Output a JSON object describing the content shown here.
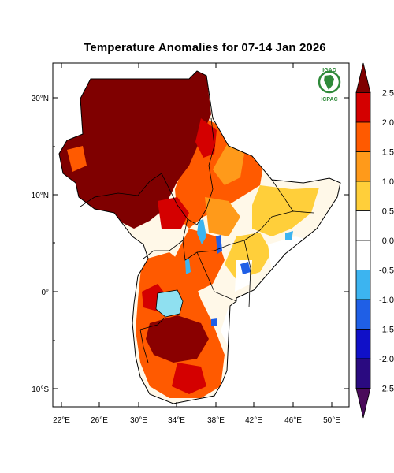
{
  "title": "Temperature Anomalies for 07-14 Jan 2026",
  "logo": {
    "top_text": "IGAD",
    "bottom_text": "ICPAC"
  },
  "axes": {
    "lat_ticks": [
      "20°N",
      "10°N",
      "0°",
      "10°S"
    ],
    "lon_ticks": [
      "22°E",
      "26°E",
      "30°E",
      "34°E",
      "38°E",
      "42°E",
      "46°E",
      "50°E"
    ]
  },
  "colorbar": {
    "labels": [
      "2.5",
      "2.0",
      "1.5",
      "1.0",
      "0.5",
      "0.0",
      "-0.5",
      "-1.0",
      "-1.5",
      "-2.0",
      "-2.5"
    ],
    "colors": [
      "#7f0000",
      "#d40000",
      "#ff5a00",
      "#ff9a1a",
      "#ffcf3a",
      "#ffffff",
      "#ffffff",
      "#3cb4f0",
      "#1f5fe6",
      "#1010c8",
      "#2a0a80",
      "#4a0a5a"
    ]
  }
}
